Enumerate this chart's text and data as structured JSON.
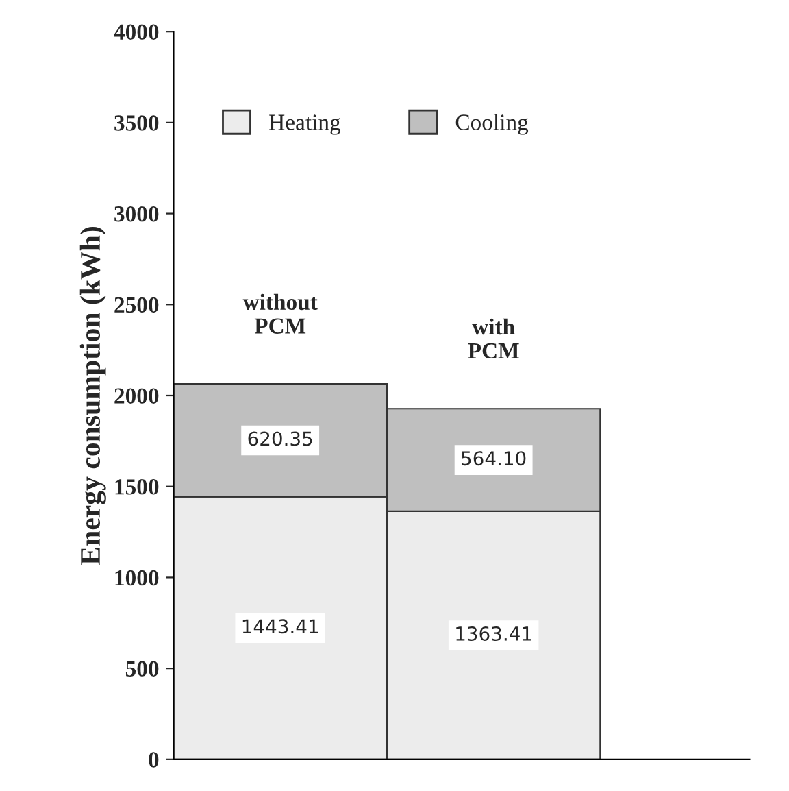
{
  "chart_data": {
    "type": "bar",
    "stacked": true,
    "ylabel": "Energy consumption (kWh)",
    "categories": [
      "without\nPCM",
      "with\nPCM"
    ],
    "series": [
      {
        "name": "Heating",
        "color": "#ececec",
        "values": [
          1443.41,
          1363.41
        ]
      },
      {
        "name": "Cooling",
        "color": "#bfbfbf",
        "values": [
          620.35,
          564.1
        ]
      }
    ],
    "value_labels": [
      [
        "1443.41",
        "1363.41"
      ],
      [
        "620.35",
        "564.10"
      ]
    ],
    "ylim": [
      0,
      4000
    ],
    "yticks": [
      0,
      500,
      1000,
      1500,
      2000,
      2500,
      3000,
      3500,
      4000
    ],
    "legend": "top left",
    "grid": false
  }
}
